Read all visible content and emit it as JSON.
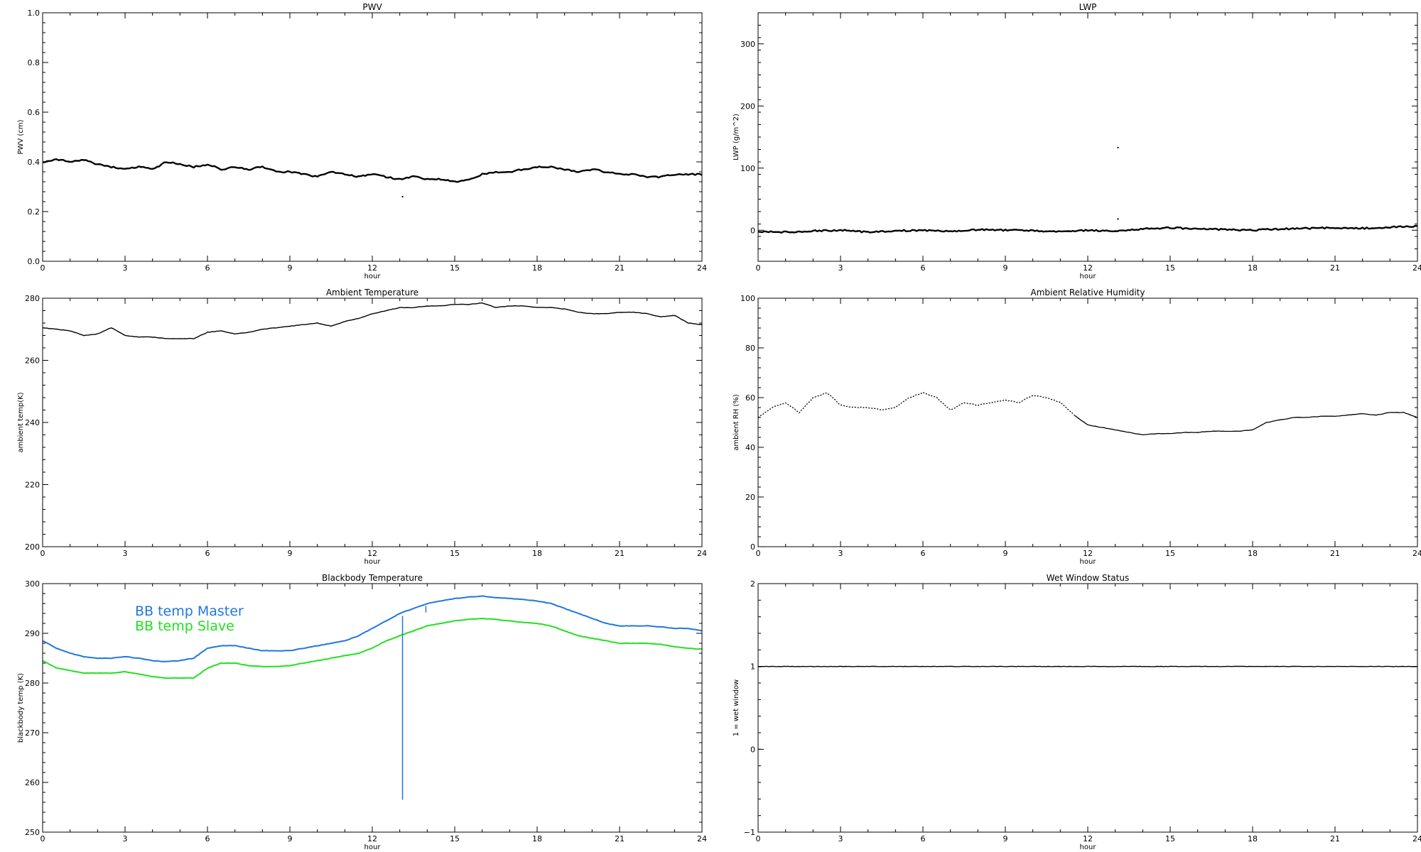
{
  "chart_data": [
    {
      "id": "pwv",
      "type": "line",
      "title": "PWV",
      "xlabel": "hour",
      "ylabel": "PWV (cm)",
      "xlim": [
        0,
        24
      ],
      "ylim": [
        0,
        1
      ],
      "xticks": [
        "0",
        "3",
        "6",
        "9",
        "12",
        "15",
        "18",
        "21",
        "24"
      ],
      "yticks": [
        {
          "v": 0.0,
          "label": "0.0"
        },
        {
          "v": 0.2,
          "label": "0.2"
        },
        {
          "v": 0.4,
          "label": "0.4"
        },
        {
          "v": 0.6,
          "label": "0.6"
        },
        {
          "v": 0.8,
          "label": "0.8"
        },
        {
          "v": 1.0,
          "label": "1.0"
        }
      ],
      "series": [
        {
          "color": "#000000",
          "width": 2.4,
          "x": [
            0,
            0.5,
            1,
            1.5,
            2,
            2.5,
            3,
            3.5,
            4,
            4.5,
            5,
            5.5,
            6,
            6.5,
            7,
            7.5,
            8,
            8.5,
            9,
            9.5,
            10,
            10.5,
            11,
            11.5,
            12,
            12.5,
            13,
            13.5,
            14,
            14.5,
            15,
            15.5,
            16,
            16.5,
            17,
            17.5,
            18,
            18.5,
            19,
            19.5,
            20,
            20.5,
            21,
            21.5,
            22,
            22.5,
            23,
            23.5,
            24
          ],
          "y": [
            0.4,
            0.41,
            0.4,
            0.41,
            0.39,
            0.38,
            0.37,
            0.38,
            0.37,
            0.4,
            0.39,
            0.38,
            0.39,
            0.37,
            0.38,
            0.37,
            0.38,
            0.36,
            0.36,
            0.35,
            0.34,
            0.36,
            0.35,
            0.34,
            0.35,
            0.34,
            0.33,
            0.34,
            0.33,
            0.33,
            0.32,
            0.33,
            0.35,
            0.36,
            0.36,
            0.37,
            0.38,
            0.38,
            0.37,
            0.36,
            0.37,
            0.36,
            0.35,
            0.35,
            0.34,
            0.34,
            0.35,
            0.35,
            0.35
          ]
        }
      ],
      "points": [
        {
          "x": 13.1,
          "y": 0.26
        }
      ]
    },
    {
      "id": "lwp",
      "type": "line",
      "title": "LWP",
      "xlabel": "hour",
      "ylabel": "LWP (g/m^2)",
      "xlim": [
        0,
        24
      ],
      "ylim": [
        -50,
        350
      ],
      "xticks": [
        "0",
        "3",
        "6",
        "9",
        "12",
        "15",
        "18",
        "21",
        "24"
      ],
      "yticks": [
        {
          "v": 0,
          "label": "0"
        },
        {
          "v": 100,
          "label": "100"
        },
        {
          "v": 200,
          "label": "200"
        },
        {
          "v": 300,
          "label": "300"
        }
      ],
      "series": [
        {
          "color": "#000000",
          "width": 2.4,
          "x": [
            0,
            1,
            2,
            3,
            4,
            5,
            6,
            7,
            8,
            9,
            10,
            11,
            12,
            13,
            14,
            15,
            16,
            17,
            18,
            19,
            20,
            21,
            22,
            23,
            24
          ],
          "y": [
            -2,
            -3,
            -1,
            0,
            -3,
            -1,
            0,
            -2,
            1,
            0,
            -1,
            -2,
            0,
            -1,
            2,
            4,
            2,
            1,
            0,
            2,
            3,
            4,
            3,
            5,
            6
          ]
        }
      ],
      "points": [
        {
          "x": 13.1,
          "y": 133
        },
        {
          "x": 13.1,
          "y": 18
        }
      ]
    },
    {
      "id": "ambient_temp",
      "type": "line",
      "title": "Ambient Temperature",
      "xlabel": "hour",
      "ylabel": "ambient temp(K)",
      "xlim": [
        0,
        24
      ],
      "ylim": [
        200,
        280
      ],
      "xticks": [
        "0",
        "3",
        "6",
        "9",
        "12",
        "15",
        "18",
        "21",
        "24"
      ],
      "yticks": [
        {
          "v": 200,
          "label": "200"
        },
        {
          "v": 220,
          "label": "220"
        },
        {
          "v": 240,
          "label": "240"
        },
        {
          "v": 260,
          "label": "260"
        },
        {
          "v": 280,
          "label": "280"
        }
      ],
      "series": [
        {
          "color": "#000000",
          "width": 1.4,
          "x": [
            0,
            0.5,
            1,
            1.5,
            2,
            2.5,
            3,
            3.5,
            4,
            4.5,
            5,
            5.5,
            6,
            6.5,
            7,
            7.5,
            8,
            8.5,
            9,
            9.5,
            10,
            10.5,
            11,
            11.5,
            12,
            12.5,
            13,
            13.5,
            14,
            14.5,
            15,
            15.5,
            16,
            16.5,
            17,
            17.5,
            18,
            18.5,
            19,
            19.5,
            20,
            20.5,
            21,
            21.5,
            22,
            22.5,
            23,
            23.5,
            24
          ],
          "y": [
            270.5,
            270,
            269.5,
            268,
            268.5,
            270.5,
            268,
            267.5,
            267.5,
            267,
            267,
            267,
            269,
            269.5,
            268.5,
            269,
            270,
            270.5,
            271,
            271.5,
            272,
            271,
            272.5,
            273.5,
            275,
            276,
            277,
            277,
            277.5,
            277.5,
            278,
            278,
            278.5,
            277,
            277.5,
            277.5,
            277,
            277,
            276.5,
            275.5,
            275,
            275,
            275.5,
            275.5,
            275,
            274,
            274.5,
            272,
            271.5
          ]
        }
      ],
      "points": []
    },
    {
      "id": "ambient_rh",
      "type": "line",
      "title": "Ambient Relative Humidity",
      "xlabel": "hour",
      "ylabel": "ambient RH (%)",
      "xlim": [
        0,
        24
      ],
      "ylim": [
        0,
        100
      ],
      "xticks": [
        "0",
        "3",
        "6",
        "9",
        "12",
        "15",
        "18",
        "21",
        "24"
      ],
      "yticks": [
        {
          "v": 0,
          "label": "0"
        },
        {
          "v": 20,
          "label": "20"
        },
        {
          "v": 40,
          "label": "40"
        },
        {
          "v": 60,
          "label": "60"
        },
        {
          "v": 80,
          "label": "80"
        },
        {
          "v": 100,
          "label": "100"
        }
      ],
      "series": [
        {
          "color": "#000000",
          "width": 1.3,
          "dash": "2 2",
          "x": [
            0,
            0.5,
            1,
            1.5,
            2,
            2.5,
            3,
            3.5,
            4,
            4.5,
            5,
            5.5,
            6,
            6.5,
            7,
            7.5,
            8,
            8.5,
            9,
            9.5,
            10,
            10.5,
            11,
            11.5
          ],
          "y": [
            52,
            56,
            58,
            54,
            60,
            62,
            57,
            56,
            56,
            55,
            56,
            60,
            62,
            60,
            55,
            58,
            57,
            58,
            59,
            58,
            61,
            60,
            58,
            53
          ]
        },
        {
          "color": "#000000",
          "width": 1.3,
          "x": [
            11.5,
            12,
            12.5,
            13,
            13.5,
            14,
            14.5,
            15,
            15.5,
            16,
            16.5,
            17,
            17.5,
            18,
            18.5,
            19,
            19.5,
            20,
            20.5,
            21,
            21.5,
            22,
            22.5,
            23,
            23.5,
            24
          ],
          "y": [
            53,
            49,
            48,
            47,
            46,
            45,
            45.5,
            45.5,
            46,
            46,
            46.5,
            46.5,
            46.5,
            47,
            50,
            51,
            52,
            52,
            52.5,
            52.5,
            53,
            53.5,
            53,
            54,
            54,
            52
          ]
        }
      ],
      "points": []
    },
    {
      "id": "bb_temp",
      "type": "line",
      "title": "Blackbody Temperature",
      "xlabel": "hour",
      "ylabel": "blackbody temp (K)",
      "xlim": [
        0,
        24
      ],
      "ylim": [
        250,
        300
      ],
      "xticks": [
        "0",
        "3",
        "6",
        "9",
        "12",
        "15",
        "18",
        "21",
        "24"
      ],
      "yticks": [
        {
          "v": 250,
          "label": "250"
        },
        {
          "v": 260,
          "label": "260"
        },
        {
          "v": 270,
          "label": "270"
        },
        {
          "v": 280,
          "label": "280"
        },
        {
          "v": 290,
          "label": "290"
        },
        {
          "v": 300,
          "label": "300"
        }
      ],
      "series": [
        {
          "name": "BB temp Master",
          "color": "#1f77e0",
          "width": 2,
          "x": [
            0,
            0.5,
            1,
            1.5,
            2,
            2.5,
            3,
            3.5,
            4,
            4.5,
            5,
            5.5,
            6,
            6.5,
            7,
            7.5,
            8,
            8.5,
            9,
            9.5,
            10,
            10.5,
            11,
            11.5,
            12,
            12.5,
            13,
            13.5,
            14,
            14.5,
            15,
            15.5,
            16,
            16.5,
            17,
            17.5,
            18,
            18.5,
            19,
            19.5,
            20,
            20.5,
            21,
            21.5,
            22,
            22.5,
            23,
            23.5,
            24
          ],
          "y": [
            288.5,
            287,
            286,
            285.3,
            285,
            285,
            285.3,
            285,
            284.5,
            284.3,
            284.5,
            285,
            287,
            287.5,
            287.5,
            287,
            286.5,
            286.5,
            286.5,
            287,
            287.5,
            288,
            288.5,
            289.5,
            291,
            292.5,
            294,
            295,
            296,
            296.5,
            297,
            297.3,
            297.5,
            297.2,
            297,
            296.8,
            296.5,
            296,
            295,
            294,
            293,
            292,
            291.5,
            291.5,
            291.5,
            291.3,
            291,
            291,
            290.5
          ]
        },
        {
          "name": "BB temp Slave",
          "color": "#22e022",
          "width": 2,
          "x": [
            0,
            0.5,
            1,
            1.5,
            2,
            2.5,
            3,
            3.5,
            4,
            4.5,
            5,
            5.5,
            6,
            6.5,
            7,
            7.5,
            8,
            8.5,
            9,
            9.5,
            10,
            10.5,
            11,
            11.5,
            12,
            12.5,
            13,
            13.5,
            14,
            14.5,
            15,
            15.5,
            16,
            16.5,
            17,
            17.5,
            18,
            18.5,
            19,
            19.5,
            20,
            20.5,
            21,
            21.5,
            22,
            22.5,
            23,
            23.5,
            24
          ],
          "y": [
            284.5,
            283,
            282.5,
            282,
            282,
            282,
            282.3,
            281.8,
            281.3,
            281,
            281,
            281,
            283,
            284,
            284,
            283.5,
            283.3,
            283.3,
            283.5,
            284,
            284.5,
            285,
            285.5,
            286,
            287,
            288.5,
            289.5,
            290.5,
            291.5,
            292,
            292.5,
            292.8,
            293,
            292.8,
            292.5,
            292.2,
            292,
            291.5,
            290.5,
            289.5,
            289,
            288.5,
            288,
            288,
            288,
            287.8,
            287.3,
            287,
            286.8
          ]
        }
      ],
      "spikes": [
        {
          "x": 13.1,
          "y_top": 293.5,
          "y_bottom": 256.5,
          "color": "#1f77e0"
        },
        {
          "x": 13.95,
          "y_top": 295.5,
          "y_bottom": 294.2,
          "color": "#1f77e0"
        }
      ],
      "legend": [
        {
          "label": "BB temp Master",
          "color": "#1f77e0"
        },
        {
          "label": "BB temp Slave",
          "color": "#22e022"
        }
      ],
      "points": []
    },
    {
      "id": "wet_window",
      "type": "line",
      "title": "Wet Window Status",
      "xlabel": "hour",
      "ylabel": "1 = wet window",
      "xlim": [
        0,
        24
      ],
      "ylim": [
        -1,
        2
      ],
      "xticks": [
        "0",
        "3",
        "6",
        "9",
        "12",
        "15",
        "18",
        "21",
        "24"
      ],
      "yticks": [
        {
          "v": -1,
          "label": "−1"
        },
        {
          "v": 0,
          "label": "0"
        },
        {
          "v": 1,
          "label": "1"
        },
        {
          "v": 2,
          "label": "2"
        }
      ],
      "series": [
        {
          "color": "#000000",
          "width": 1.4,
          "x": [
            0,
            24
          ],
          "y": [
            1,
            1
          ]
        }
      ],
      "points": []
    }
  ]
}
